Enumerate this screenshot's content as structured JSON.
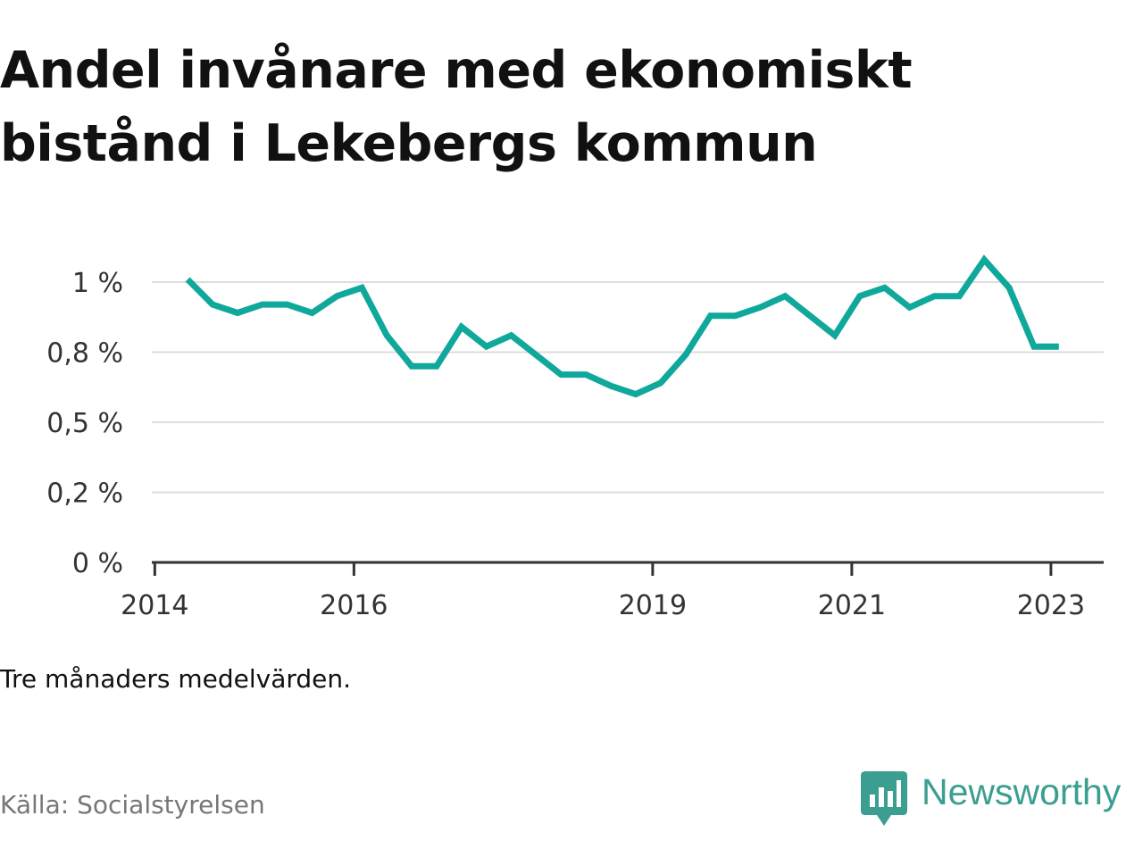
{
  "title": "Andel invånare med ekonomiskt bistånd i Lekebergs kommun",
  "note": "Tre månaders medelvärden.",
  "source": "Källa: Socialstyrelsen",
  "brand": {
    "name": "Newsworthy",
    "icon": "newsworthy-logo-icon"
  },
  "colors": {
    "line": "#0fa89b",
    "grid": "#dddddd",
    "axis": "#333333",
    "brand": "#3a9e90"
  },
  "chart_data": {
    "type": "line",
    "title": "Andel invånare med ekonomiskt bistånd i Lekebergs kommun",
    "xlabel": "",
    "ylabel": "",
    "ylim": [
      0,
      1.0
    ],
    "y_ticks": [
      {
        "value": 0,
        "label": "0 %"
      },
      {
        "value": 0.25,
        "label": "0,2 %"
      },
      {
        "value": 0.5,
        "label": "0,5 %"
      },
      {
        "value": 0.75,
        "label": "0,8 %"
      },
      {
        "value": 1.0,
        "label": "1 %"
      }
    ],
    "x_ticks": [
      {
        "value": 2014.0,
        "label": "2014"
      },
      {
        "value": 2016.0,
        "label": "2016"
      },
      {
        "value": 2019.0,
        "label": "2019"
      },
      {
        "value": 2021.0,
        "label": "2021"
      },
      {
        "value": 2023.0,
        "label": "2023"
      }
    ],
    "xlim": [
      2013.97,
      2023.53
    ],
    "grid": true,
    "series": [
      {
        "values": [
          {
            "x": 2014.33,
            "y": 1.01
          },
          {
            "x": 2014.58,
            "y": 0.92
          },
          {
            "x": 2014.83,
            "y": 0.89
          },
          {
            "x": 2015.08,
            "y": 0.92
          },
          {
            "x": 2015.33,
            "y": 0.92
          },
          {
            "x": 2015.58,
            "y": 0.89
          },
          {
            "x": 2015.83,
            "y": 0.95
          },
          {
            "x": 2016.08,
            "y": 0.98
          },
          {
            "x": 2016.33,
            "y": 0.81
          },
          {
            "x": 2016.58,
            "y": 0.7
          },
          {
            "x": 2016.83,
            "y": 0.7
          },
          {
            "x": 2017.08,
            "y": 0.84
          },
          {
            "x": 2017.33,
            "y": 0.77
          },
          {
            "x": 2017.58,
            "y": 0.81
          },
          {
            "x": 2017.83,
            "y": 0.74
          },
          {
            "x": 2018.08,
            "y": 0.67
          },
          {
            "x": 2018.33,
            "y": 0.67
          },
          {
            "x": 2018.58,
            "y": 0.63
          },
          {
            "x": 2018.83,
            "y": 0.6
          },
          {
            "x": 2019.08,
            "y": 0.64
          },
          {
            "x": 2019.33,
            "y": 0.74
          },
          {
            "x": 2019.58,
            "y": 0.88
          },
          {
            "x": 2019.83,
            "y": 0.88
          },
          {
            "x": 2020.08,
            "y": 0.91
          },
          {
            "x": 2020.33,
            "y": 0.95
          },
          {
            "x": 2020.58,
            "y": 0.88
          },
          {
            "x": 2020.83,
            "y": 0.81
          },
          {
            "x": 2021.08,
            "y": 0.95
          },
          {
            "x": 2021.33,
            "y": 0.98
          },
          {
            "x": 2021.58,
            "y": 0.91
          },
          {
            "x": 2021.83,
            "y": 0.95
          },
          {
            "x": 2022.08,
            "y": 0.95
          },
          {
            "x": 2022.33,
            "y": 1.08
          },
          {
            "x": 2022.58,
            "y": 0.98
          },
          {
            "x": 2022.83,
            "y": 0.77
          },
          {
            "x": 2023.08,
            "y": 0.77
          }
        ]
      }
    ]
  }
}
